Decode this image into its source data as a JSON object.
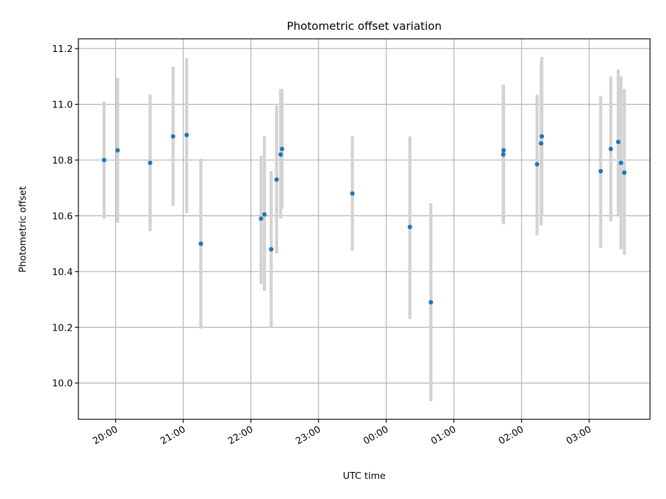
{
  "chart_data": {
    "type": "scatter",
    "title": "Photometric offset variation",
    "xlabel": "UTC time",
    "ylabel": "Photometric offset",
    "x_unit": "hours",
    "xlim": [
      19.45,
      27.9
    ],
    "ylim": [
      9.87,
      11.235
    ],
    "grid": true,
    "colors": {
      "point": "#1f77b4",
      "errorbar": "#d3d3d3"
    },
    "x_ticks": [
      {
        "value": 20,
        "label": "20:00"
      },
      {
        "value": 21,
        "label": "21:00"
      },
      {
        "value": 22,
        "label": "22:00"
      },
      {
        "value": 23,
        "label": "23:00"
      },
      {
        "value": 24,
        "label": "00:00"
      },
      {
        "value": 25,
        "label": "01:00"
      },
      {
        "value": 26,
        "label": "02:00"
      },
      {
        "value": 27,
        "label": "03:00"
      }
    ],
    "y_ticks": [
      {
        "value": 10.0,
        "label": "10.0"
      },
      {
        "value": 10.2,
        "label": "10.2"
      },
      {
        "value": 10.4,
        "label": "10.4"
      },
      {
        "value": 10.6,
        "label": "10.6"
      },
      {
        "value": 10.8,
        "label": "10.8"
      },
      {
        "value": 11.0,
        "label": "11.0"
      },
      {
        "value": 11.2,
        "label": "11.2"
      }
    ],
    "points": [
      {
        "x": 19.83,
        "y": 10.8,
        "ylow": 10.59,
        "yhigh": 11.01
      },
      {
        "x": 20.03,
        "y": 10.835,
        "ylow": 10.575,
        "yhigh": 11.095
      },
      {
        "x": 20.51,
        "y": 10.79,
        "ylow": 10.545,
        "yhigh": 11.035
      },
      {
        "x": 20.85,
        "y": 10.885,
        "ylow": 10.635,
        "yhigh": 11.135
      },
      {
        "x": 21.05,
        "y": 10.89,
        "ylow": 10.61,
        "yhigh": 11.165
      },
      {
        "x": 21.26,
        "y": 10.5,
        "ylow": 10.195,
        "yhigh": 10.805
      },
      {
        "x": 22.15,
        "y": 10.59,
        "ylow": 10.355,
        "yhigh": 10.815
      },
      {
        "x": 22.2,
        "y": 10.605,
        "ylow": 10.33,
        "yhigh": 10.885
      },
      {
        "x": 22.3,
        "y": 10.48,
        "ylow": 10.2,
        "yhigh": 10.76
      },
      {
        "x": 22.38,
        "y": 10.73,
        "ylow": 10.465,
        "yhigh": 10.995
      },
      {
        "x": 22.44,
        "y": 10.82,
        "ylow": 10.59,
        "yhigh": 11.055
      },
      {
        "x": 22.46,
        "y": 10.84,
        "ylow": 10.625,
        "yhigh": 11.055
      },
      {
        "x": 23.5,
        "y": 10.68,
        "ylow": 10.475,
        "yhigh": 10.885
      },
      {
        "x": 24.35,
        "y": 10.56,
        "ylow": 10.23,
        "yhigh": 10.885
      },
      {
        "x": 24.66,
        "y": 10.29,
        "ylow": 9.935,
        "yhigh": 10.645
      },
      {
        "x": 25.73,
        "y": 10.82,
        "ylow": 10.575,
        "yhigh": 11.07
      },
      {
        "x": 25.735,
        "y": 10.835,
        "ylow": 10.57,
        "yhigh": 11.07
      },
      {
        "x": 26.23,
        "y": 10.785,
        "ylow": 10.53,
        "yhigh": 11.035
      },
      {
        "x": 26.29,
        "y": 10.86,
        "ylow": 10.565,
        "yhigh": 11.15
      },
      {
        "x": 26.3,
        "y": 10.885,
        "ylow": 10.6,
        "yhigh": 11.17
      },
      {
        "x": 27.17,
        "y": 10.76,
        "ylow": 10.485,
        "yhigh": 11.03
      },
      {
        "x": 27.32,
        "y": 10.84,
        "ylow": 10.58,
        "yhigh": 11.1
      },
      {
        "x": 27.43,
        "y": 10.865,
        "ylow": 10.6,
        "yhigh": 11.125
      },
      {
        "x": 27.47,
        "y": 10.79,
        "ylow": 10.48,
        "yhigh": 11.1
      },
      {
        "x": 27.52,
        "y": 10.755,
        "ylow": 10.46,
        "yhigh": 11.055
      }
    ]
  }
}
